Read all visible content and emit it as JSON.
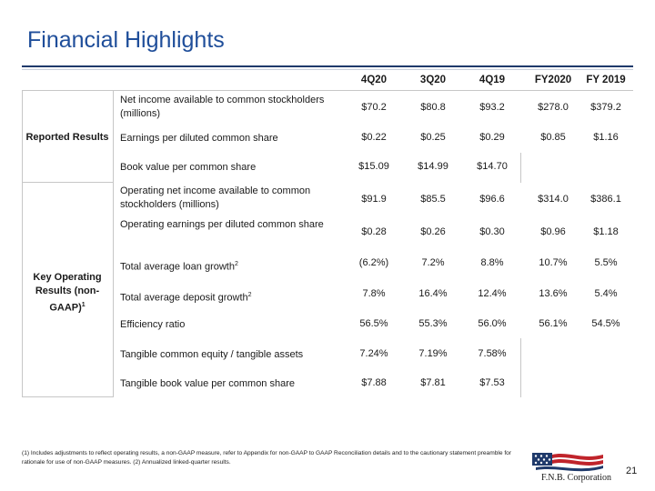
{
  "title": "Financial Highlights",
  "columns": [
    "4Q20",
    "3Q20",
    "4Q19",
    "FY2020",
    "FY 2019"
  ],
  "groups": [
    {
      "label": "Reported Results",
      "label_sup": "",
      "rows": [
        {
          "label": "Net income available to common stockholders (millions)",
          "sup": "",
          "values": [
            "$70.2",
            "$80.8",
            "$93.2",
            "$278.0",
            "$379.2"
          ]
        },
        {
          "label": "Earnings per diluted common share",
          "sup": "",
          "values": [
            "$0.22",
            "$0.25",
            "$0.29",
            "$0.85",
            "$1.16"
          ]
        },
        {
          "label": "Book value per common share",
          "sup": "",
          "values": [
            "$15.09",
            "$14.99",
            "$14.70",
            "",
            ""
          ]
        }
      ]
    },
    {
      "label": "Key Operating Results (non-GAAP)",
      "label_sup": "1",
      "rows": [
        {
          "label": "Operating net income available to common stockholders (millions)",
          "sup": "",
          "values": [
            "$91.9",
            "$85.5",
            "$96.6",
            "$314.0",
            "$386.1"
          ]
        },
        {
          "label": "Operating earnings per diluted common share",
          "sup": "",
          "values": [
            "$0.28",
            "$0.26",
            "$0.30",
            "$0.96",
            "$1.18"
          ]
        },
        {
          "label": "Total average loan growth",
          "sup": "2",
          "values": [
            "(6.2%)",
            "7.2%",
            "8.8%",
            "10.7%",
            "5.5%"
          ]
        },
        {
          "label": "Total average deposit growth",
          "sup": "2",
          "values": [
            "7.8%",
            "16.4%",
            "12.4%",
            "13.6%",
            "5.4%"
          ]
        },
        {
          "label": "Efficiency ratio",
          "sup": "",
          "values": [
            "56.5%",
            "55.3%",
            "56.0%",
            "56.1%",
            "54.5%"
          ]
        },
        {
          "label": "Tangible common equity / tangible assets",
          "sup": "",
          "values": [
            "7.24%",
            "7.19%",
            "7.58%",
            "",
            ""
          ]
        },
        {
          "label": "Tangible book value per common share",
          "sup": "",
          "values": [
            "$7.88",
            "$7.81",
            "$7.53",
            "",
            ""
          ]
        }
      ]
    }
  ],
  "footnote": "(1) Includes adjustments to reflect operating results, a non-GAAP measure, refer to Appendix for non-GAAP to GAAP Reconciliation details and to the cautionary statement preamble for rationale for use of non-GAAP measures. (2) Annualized linked-quarter results.",
  "logo_text": "F.N.B. Corporation",
  "page_number": "21",
  "colors": {
    "title": "#1f4e9a",
    "rule": "#1f3a6b",
    "flag_red": "#c0242b",
    "flag_blue": "#1f3a6b"
  }
}
